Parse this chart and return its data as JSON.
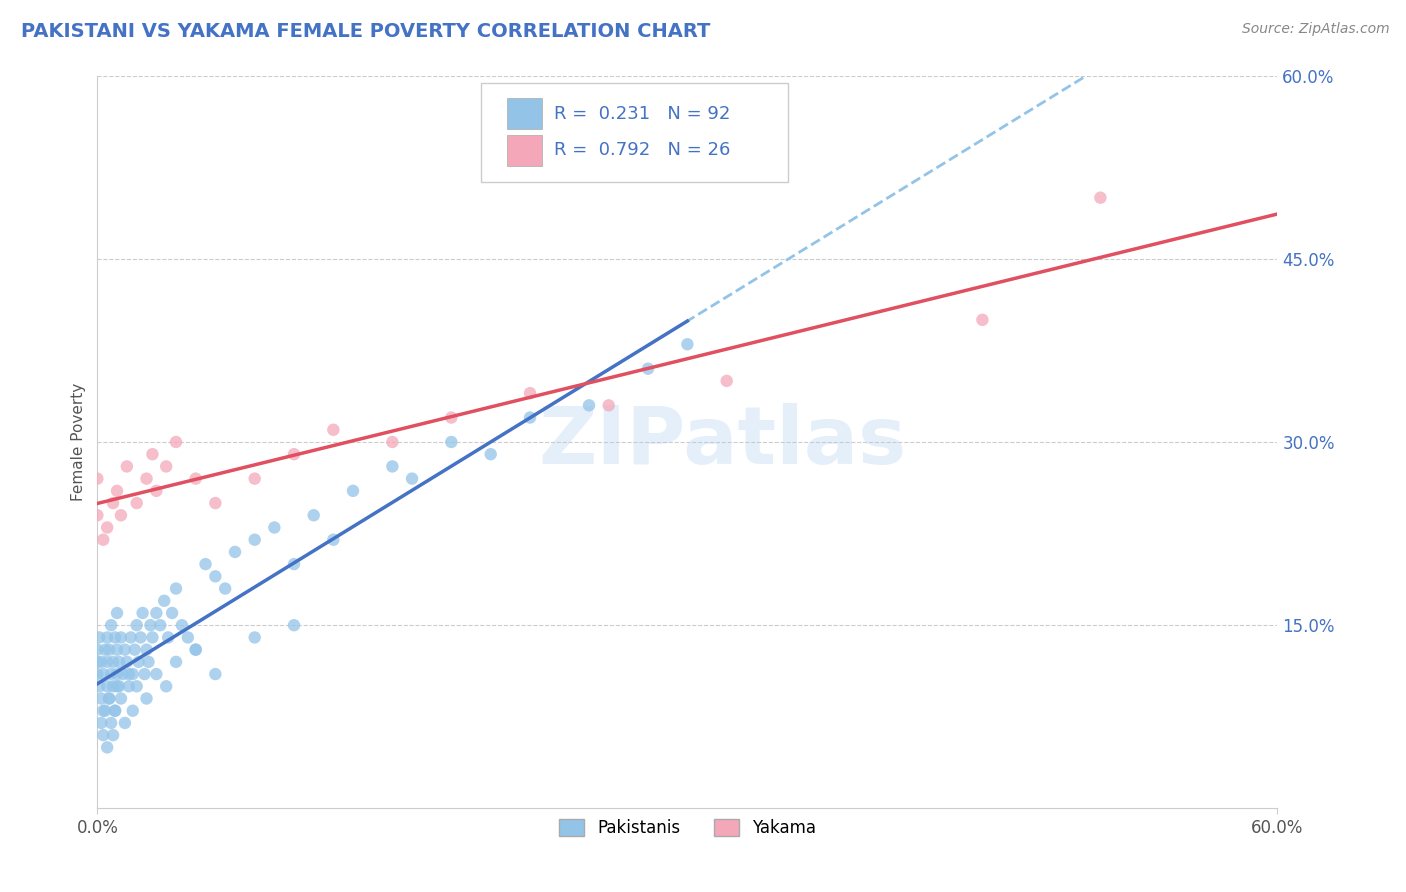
{
  "title": "PAKISTANI VS YAKAMA FEMALE POVERTY CORRELATION CHART",
  "source_text": "Source: ZipAtlas.com",
  "ylabel": "Female Poverty",
  "watermark": "ZIPatlas",
  "xlim": [
    0.0,
    0.6
  ],
  "ylim": [
    0.0,
    0.6
  ],
  "ytick_values": [
    0.15,
    0.3,
    0.45,
    0.6
  ],
  "pakistani_R": 0.231,
  "pakistani_N": 92,
  "yakama_R": 0.792,
  "yakama_N": 26,
  "blue_scatter_color": "#93C4E8",
  "pink_scatter_color": "#F4A7B9",
  "blue_line_color": "#4472C4",
  "pink_line_color": "#E05060",
  "blue_dashed_color": "#93C4E8",
  "legend_labels": [
    "Pakistanis",
    "Yakama"
  ],
  "title_color": "#4472C4",
  "source_color": "#888888",
  "pakistani_x": [
    0.0,
    0.0,
    0.0,
    0.001,
    0.001,
    0.002,
    0.002,
    0.003,
    0.003,
    0.004,
    0.005,
    0.005,
    0.005,
    0.006,
    0.006,
    0.007,
    0.007,
    0.008,
    0.008,
    0.009,
    0.009,
    0.01,
    0.01,
    0.01,
    0.011,
    0.011,
    0.012,
    0.013,
    0.014,
    0.015,
    0.016,
    0.017,
    0.018,
    0.019,
    0.02,
    0.021,
    0.022,
    0.023,
    0.024,
    0.025,
    0.026,
    0.027,
    0.028,
    0.03,
    0.032,
    0.034,
    0.036,
    0.038,
    0.04,
    0.043,
    0.046,
    0.05,
    0.055,
    0.06,
    0.065,
    0.07,
    0.08,
    0.09,
    0.1,
    0.11,
    0.12,
    0.13,
    0.15,
    0.16,
    0.18,
    0.2,
    0.22,
    0.25,
    0.28,
    0.3,
    0.002,
    0.003,
    0.004,
    0.005,
    0.006,
    0.007,
    0.008,
    0.009,
    0.01,
    0.012,
    0.014,
    0.016,
    0.018,
    0.02,
    0.025,
    0.03,
    0.035,
    0.04,
    0.05,
    0.06,
    0.08,
    0.1
  ],
  "pakistani_y": [
    0.12,
    0.11,
    0.13,
    0.1,
    0.14,
    0.09,
    0.12,
    0.08,
    0.11,
    0.13,
    0.1,
    0.12,
    0.14,
    0.09,
    0.13,
    0.11,
    0.15,
    0.1,
    0.12,
    0.08,
    0.14,
    0.11,
    0.13,
    0.16,
    0.1,
    0.12,
    0.14,
    0.11,
    0.13,
    0.12,
    0.1,
    0.14,
    0.11,
    0.13,
    0.15,
    0.12,
    0.14,
    0.16,
    0.11,
    0.13,
    0.12,
    0.15,
    0.14,
    0.16,
    0.15,
    0.17,
    0.14,
    0.16,
    0.18,
    0.15,
    0.14,
    0.13,
    0.2,
    0.19,
    0.18,
    0.21,
    0.22,
    0.23,
    0.2,
    0.24,
    0.22,
    0.26,
    0.28,
    0.27,
    0.3,
    0.29,
    0.32,
    0.33,
    0.36,
    0.38,
    0.07,
    0.06,
    0.08,
    0.05,
    0.09,
    0.07,
    0.06,
    0.08,
    0.1,
    0.09,
    0.07,
    0.11,
    0.08,
    0.1,
    0.09,
    0.11,
    0.1,
    0.12,
    0.13,
    0.11,
    0.14,
    0.15
  ],
  "yakama_x": [
    0.0,
    0.0,
    0.003,
    0.005,
    0.008,
    0.01,
    0.012,
    0.015,
    0.02,
    0.025,
    0.028,
    0.03,
    0.035,
    0.04,
    0.05,
    0.06,
    0.08,
    0.1,
    0.12,
    0.15,
    0.18,
    0.22,
    0.26,
    0.32,
    0.45,
    0.51
  ],
  "yakama_y": [
    0.24,
    0.27,
    0.22,
    0.23,
    0.25,
    0.26,
    0.24,
    0.28,
    0.25,
    0.27,
    0.29,
    0.26,
    0.28,
    0.3,
    0.27,
    0.25,
    0.27,
    0.29,
    0.31,
    0.3,
    0.32,
    0.34,
    0.33,
    0.35,
    0.4,
    0.5
  ]
}
